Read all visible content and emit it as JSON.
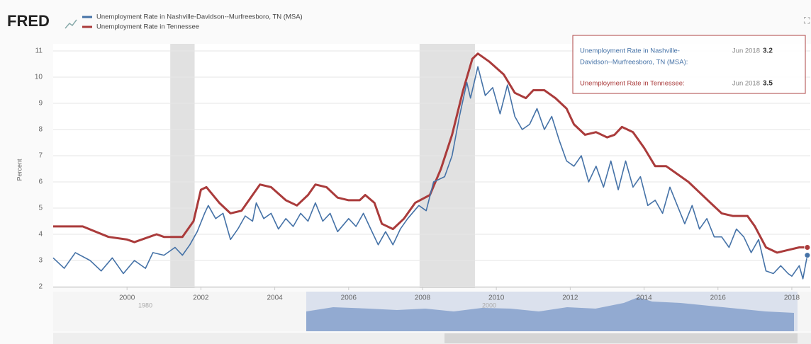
{
  "chart_data": {
    "type": "line",
    "logo": "FRED",
    "y_label": "Percent",
    "xlim": [
      1998,
      2018.5
    ],
    "ylim": [
      2,
      11
    ],
    "xticks": [
      2000,
      2002,
      2004,
      2006,
      2008,
      2010,
      2012,
      2014,
      2016,
      2018
    ],
    "yticks": [
      2,
      3,
      4,
      5,
      6,
      7,
      8,
      9,
      10,
      11
    ],
    "grid": true,
    "recessions": [
      [
        2001.17,
        2001.83
      ],
      [
        2007.92,
        2009.42
      ]
    ],
    "series": [
      {
        "name": "Unemployment Rate in Nashville-Davidson--Murfreesboro, TN (MSA)",
        "color": "#4572a7",
        "x": [
          1998.0,
          1998.3,
          1998.6,
          1999.0,
          1999.3,
          1999.6,
          1999.9,
          2000.2,
          2000.5,
          2000.7,
          2001.0,
          2001.3,
          2001.5,
          2001.7,
          2001.9,
          2002.1,
          2002.2,
          2002.4,
          2002.6,
          2002.8,
          2003.0,
          2003.2,
          2003.4,
          2003.5,
          2003.7,
          2003.9,
          2004.1,
          2004.3,
          2004.5,
          2004.7,
          2004.9,
          2005.1,
          2005.3,
          2005.5,
          2005.7,
          2006.0,
          2006.2,
          2006.4,
          2006.6,
          2006.8,
          2007.0,
          2007.2,
          2007.4,
          2007.6,
          2007.9,
          2008.1,
          2008.3,
          2008.6,
          2008.8,
          2009.0,
          2009.2,
          2009.3,
          2009.5,
          2009.7,
          2009.9,
          2010.1,
          2010.3,
          2010.5,
          2010.7,
          2010.9,
          2011.1,
          2011.3,
          2011.5,
          2011.7,
          2011.9,
          2012.1,
          2012.3,
          2012.5,
          2012.7,
          2012.9,
          2013.1,
          2013.3,
          2013.5,
          2013.7,
          2013.9,
          2014.1,
          2014.3,
          2014.5,
          2014.7,
          2014.9,
          2015.1,
          2015.3,
          2015.5,
          2015.7,
          2015.9,
          2016.1,
          2016.3,
          2016.5,
          2016.7,
          2016.9,
          2017.1,
          2017.3,
          2017.5,
          2017.7,
          2017.9,
          2018.0,
          2018.2,
          2018.3,
          2018.42
        ],
        "values": [
          3.1,
          2.7,
          3.3,
          3.0,
          2.6,
          3.1,
          2.5,
          3.0,
          2.7,
          3.3,
          3.2,
          3.5,
          3.2,
          3.6,
          4.1,
          4.8,
          5.1,
          4.6,
          4.8,
          3.8,
          4.2,
          4.7,
          4.5,
          5.2,
          4.6,
          4.8,
          4.2,
          4.6,
          4.3,
          4.8,
          4.5,
          5.2,
          4.5,
          4.8,
          4.1,
          4.6,
          4.3,
          4.8,
          4.2,
          3.6,
          4.1,
          3.6,
          4.2,
          4.6,
          5.1,
          4.9,
          6.0,
          6.2,
          7.0,
          8.5,
          9.8,
          9.2,
          10.4,
          9.3,
          9.6,
          8.6,
          9.7,
          8.5,
          8.0,
          8.2,
          8.8,
          8.0,
          8.5,
          7.6,
          6.8,
          6.6,
          7.0,
          6.0,
          6.6,
          5.8,
          6.8,
          5.7,
          6.8,
          5.8,
          6.2,
          5.1,
          5.3,
          4.8,
          5.8,
          5.1,
          4.4,
          5.1,
          4.2,
          4.6,
          3.9,
          3.9,
          3.5,
          4.2,
          3.9,
          3.3,
          3.8,
          2.6,
          2.5,
          2.8,
          2.5,
          2.4,
          2.8,
          2.3,
          3.2
        ]
      },
      {
        "name": "Unemployment Rate in Tennessee",
        "color": "#aa3b3b",
        "x": [
          1998.0,
          1998.8,
          1999.5,
          2000.0,
          2000.2,
          2000.6,
          2000.8,
          2001.0,
          2001.5,
          2001.8,
          2002.0,
          2002.15,
          2002.5,
          2002.8,
          2003.1,
          2003.4,
          2003.6,
          2003.9,
          2004.3,
          2004.6,
          2004.9,
          2005.1,
          2005.4,
          2005.7,
          2006.0,
          2006.3,
          2006.45,
          2006.7,
          2006.9,
          2007.2,
          2007.5,
          2007.8,
          2008.2,
          2008.5,
          2008.8,
          2009.1,
          2009.35,
          2009.5,
          2009.8,
          2010.2,
          2010.5,
          2010.8,
          2011.0,
          2011.3,
          2011.6,
          2011.9,
          2012.1,
          2012.4,
          2012.7,
          2013.0,
          2013.2,
          2013.4,
          2013.7,
          2014.0,
          2014.3,
          2014.6,
          2014.9,
          2015.2,
          2015.5,
          2015.8,
          2016.1,
          2016.4,
          2016.8,
          2017.0,
          2017.3,
          2017.6,
          2017.9,
          2018.2,
          2018.42
        ],
        "values": [
          4.3,
          4.3,
          3.9,
          3.8,
          3.7,
          3.9,
          4.0,
          3.9,
          3.9,
          4.5,
          5.7,
          5.8,
          5.2,
          4.8,
          4.9,
          5.5,
          5.9,
          5.8,
          5.3,
          5.1,
          5.5,
          5.9,
          5.8,
          5.4,
          5.3,
          5.3,
          5.5,
          5.2,
          4.4,
          4.2,
          4.6,
          5.2,
          5.5,
          6.5,
          7.8,
          9.5,
          10.7,
          10.9,
          10.6,
          10.1,
          9.4,
          9.2,
          9.5,
          9.5,
          9.2,
          8.8,
          8.2,
          7.8,
          7.9,
          7.7,
          7.8,
          8.1,
          7.9,
          7.3,
          6.6,
          6.6,
          6.3,
          6.0,
          5.6,
          5.2,
          4.8,
          4.7,
          4.7,
          4.3,
          3.5,
          3.3,
          3.4,
          3.5,
          3.5
        ]
      }
    ],
    "tooltip": [
      {
        "label_lines": [
          "Unemployment Rate in Nashville-",
          "Davidson--Murfreesboro, TN (MSA):"
        ],
        "date": "Jun 2018",
        "value": 3.2
      },
      {
        "label_lines": [
          "Unemployment Rate in Tennessee:"
        ],
        "date": "Jun 2018",
        "value": 3.5
      }
    ],
    "navigator_labels": [
      "1980",
      "2000"
    ]
  }
}
